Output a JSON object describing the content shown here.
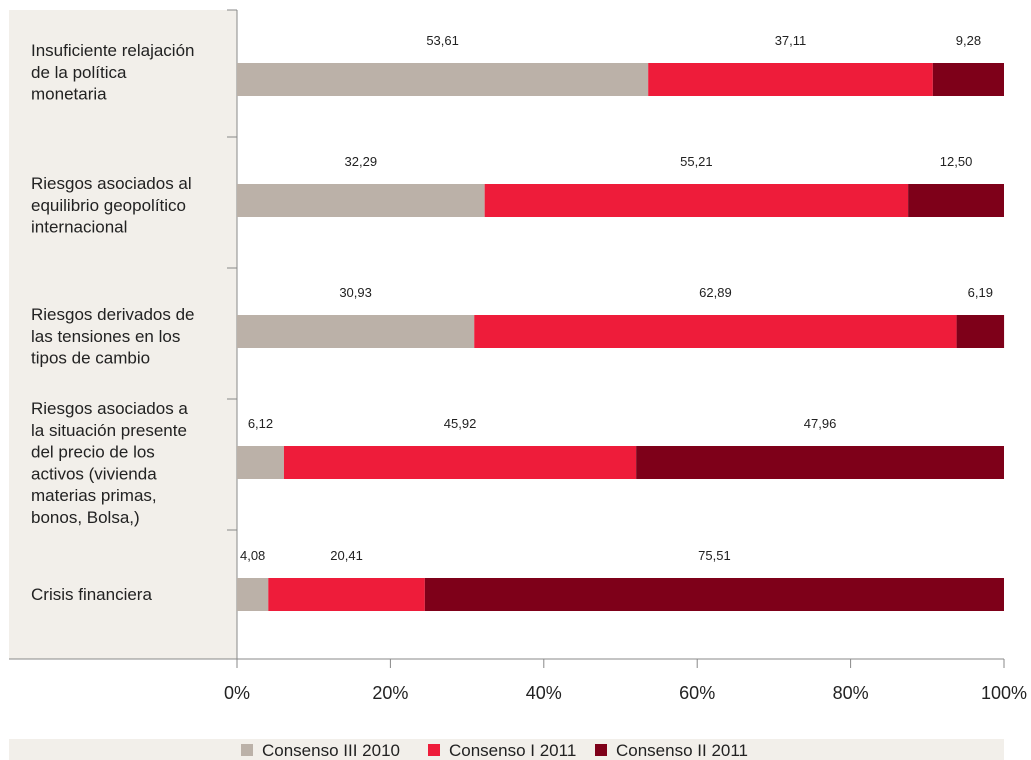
{
  "chart_data": {
    "type": "bar",
    "orientation": "horizontal",
    "stacked": true,
    "categories": [
      "Insuficiente relajación de la política monetaria",
      "Riesgos asociados al equilibrio geopolítico internacional",
      "Riesgos derivados de las tensiones en los tipos de cambio",
      "Riesgos asociados a la situación presente del precio de los activos (vivienda materias primas, bonos, Bolsa,)",
      "Crisis financiera"
    ],
    "category_lines": [
      [
        "Insuficiente relajación",
        "de la política",
        "monetaria"
      ],
      [
        "Riesgos asociados al",
        "equilibrio geopolítico",
        "internacional"
      ],
      [
        "Riesgos derivados de",
        "las tensiones en los",
        "tipos de cambio"
      ],
      [
        "Riesgos asociados a",
        "la situación presente",
        "del precio de los",
        "activos (vivienda",
        "materias primas,",
        "bonos, Bolsa,)"
      ],
      [
        "Crisis financiera"
      ]
    ],
    "series": [
      {
        "name": "Consenso III 2010",
        "color": "#bbb1a8",
        "values": [
          53.61,
          32.29,
          30.93,
          6.12,
          4.08
        ],
        "labels": [
          "53,61",
          "32,29",
          "30,93",
          "6,12",
          "4,08"
        ]
      },
      {
        "name": "Consenso I 2011",
        "color": "#ee1c3a",
        "values": [
          37.11,
          55.21,
          62.89,
          45.92,
          20.41
        ],
        "labels": [
          "37,11",
          "55,21",
          "62,89",
          "45,92",
          "20,41"
        ]
      },
      {
        "name": "Consenso II 2011",
        "color": "#7e0019",
        "values": [
          9.28,
          12.5,
          6.19,
          47.96,
          75.51
        ],
        "labels": [
          "9,28",
          "12,50",
          "6,19",
          "47,96",
          "75,51"
        ]
      }
    ],
    "xlim": [
      0,
      100
    ],
    "xticks": [
      0,
      20,
      40,
      60,
      80,
      100
    ],
    "xtick_labels": [
      "0%",
      "20%",
      "40%",
      "60%",
      "80%",
      "100%"
    ],
    "legend_position": "bottom",
    "grid": false
  },
  "colors": {
    "label_panel": "#f2efea",
    "legend_band": "#f2efea",
    "axis": "#888888"
  }
}
